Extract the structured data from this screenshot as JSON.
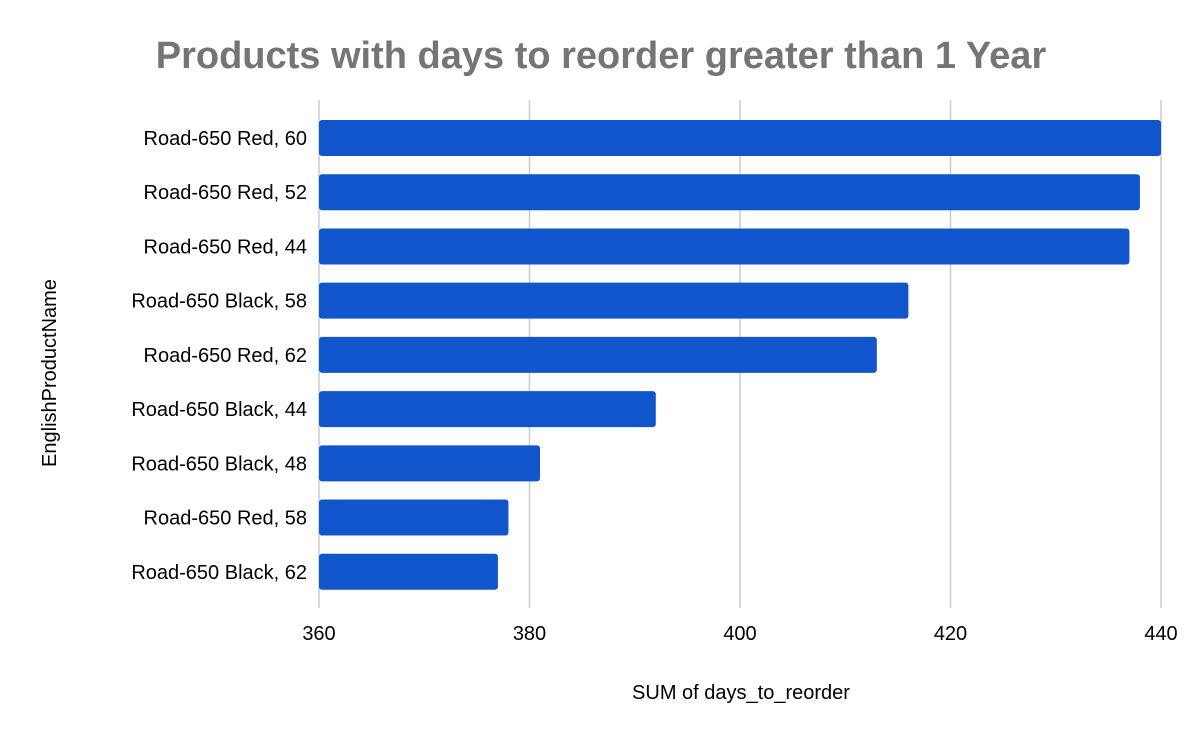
{
  "chart_data": {
    "type": "bar",
    "orientation": "horizontal",
    "title": "Products with days to reorder greater than 1 Year",
    "xlabel": "SUM of days_to_reorder",
    "ylabel": "EnglishProductName",
    "categories": [
      "Road-650 Red, 60",
      "Road-650 Red, 52",
      "Road-650 Red, 44",
      "Road-650 Black, 58",
      "Road-650 Red, 62",
      "Road-650 Black, 44",
      "Road-650 Black, 48",
      "Road-650 Red, 58",
      "Road-650 Black, 62"
    ],
    "values": [
      440,
      438,
      437,
      416,
      413,
      392,
      381,
      378,
      377
    ],
    "xlim": [
      360,
      440
    ],
    "xticks": [
      "360",
      "380",
      "400",
      "420",
      "440"
    ],
    "grid": "vertical",
    "legend": "none",
    "colors": {
      "bar": "#1155cc",
      "title": "#757575",
      "grid": "#cccccc"
    }
  }
}
